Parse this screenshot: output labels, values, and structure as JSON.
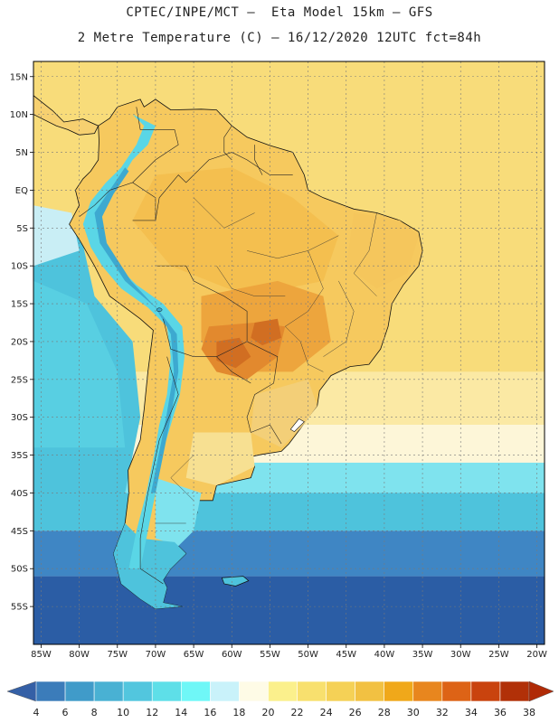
{
  "header": {
    "line1": "CPTEC/INPE/MCT –  Eta Model 15km – GFS",
    "line2": "2 Metre Temperature (C) – 16/12/2020 12UTC fct=84h"
  },
  "map": {
    "lon_range": [
      -86,
      -19
    ],
    "lat_range": [
      -60,
      17
    ],
    "lon_ticks": [
      {
        "v": -85,
        "label": "85W"
      },
      {
        "v": -80,
        "label": "80W"
      },
      {
        "v": -75,
        "label": "75W"
      },
      {
        "v": -70,
        "label": "70W"
      },
      {
        "v": -65,
        "label": "65W"
      },
      {
        "v": -60,
        "label": "60W"
      },
      {
        "v": -55,
        "label": "55W"
      },
      {
        "v": -50,
        "label": "50W"
      },
      {
        "v": -45,
        "label": "45W"
      },
      {
        "v": -40,
        "label": "40W"
      },
      {
        "v": -35,
        "label": "35W"
      },
      {
        "v": -30,
        "label": "30W"
      },
      {
        "v": -25,
        "label": "25W"
      },
      {
        "v": -20,
        "label": "20W"
      }
    ],
    "lat_ticks": [
      {
        "v": 15,
        "label": "15N"
      },
      {
        "v": 10,
        "label": "10N"
      },
      {
        "v": 5,
        "label": "5N"
      },
      {
        "v": 0,
        "label": "EQ"
      },
      {
        "v": -5,
        "label": "5S"
      },
      {
        "v": -10,
        "label": "10S"
      },
      {
        "v": -15,
        "label": "15S"
      },
      {
        "v": -20,
        "label": "20S"
      },
      {
        "v": -25,
        "label": "25S"
      },
      {
        "v": -30,
        "label": "30S"
      },
      {
        "v": -35,
        "label": "35S"
      },
      {
        "v": -40,
        "label": "40S"
      },
      {
        "v": -45,
        "label": "45S"
      },
      {
        "v": -50,
        "label": "50S"
      },
      {
        "v": -55,
        "label": "55S"
      }
    ],
    "grid": true
  },
  "colorbar": {
    "levels": [
      4,
      6,
      8,
      10,
      12,
      14,
      16,
      18,
      20,
      22,
      24,
      26,
      28,
      30,
      32,
      34,
      36,
      38
    ],
    "colors": [
      "#3560a6",
      "#3b7cba",
      "#409bc9",
      "#49b1d3",
      "#52c6de",
      "#5edfe8",
      "#6ff7f7",
      "#c9f2fa",
      "#fefbe6",
      "#fbf08c",
      "#f8e06e",
      "#f5d156",
      "#f2c142",
      "#f0a81a",
      "#e8861e",
      "#dd6316",
      "#c9430e",
      "#b13008",
      "#b02a06"
    ]
  },
  "palette": {
    "ocean_deep": "#2b5da5",
    "ocean_cold": "#3f86c4",
    "ocean_cool": "#4ec3dc",
    "ocean_mild": "#7fe3ee",
    "ocean_warm": "#fdf6d8",
    "ocean_tropic": "#f8dc7a",
    "land_hot": "#f2b84a",
    "land_veryhot": "#e2892e",
    "land_peak": "#d16e22",
    "andes": "#5ad6e6",
    "andes_high": "#3da9d0"
  }
}
